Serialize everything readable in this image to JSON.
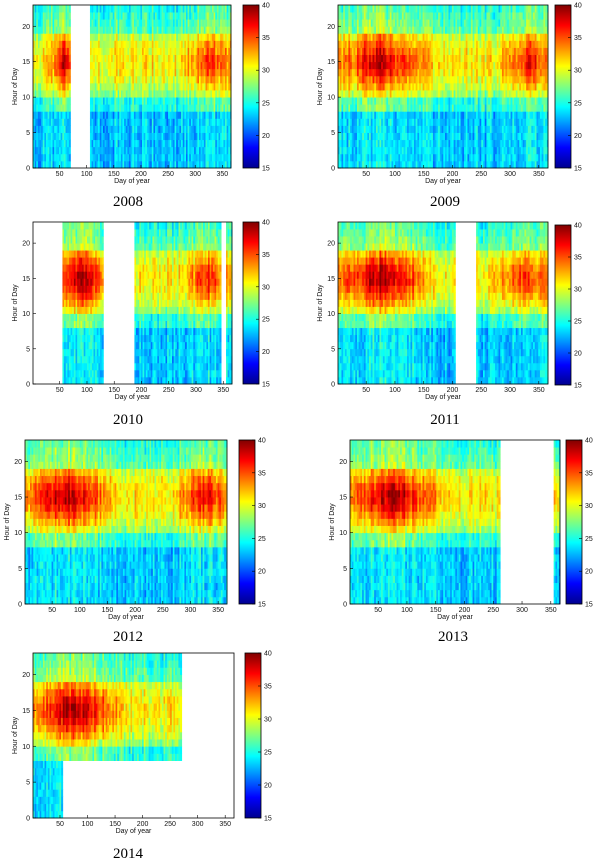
{
  "figure": {
    "colorbar_ticks": [
      15,
      20,
      25,
      30,
      35,
      40
    ],
    "colormap": "jet"
  },
  "chart_data": [
    {
      "type": "heatmap",
      "title": "2008",
      "xlabel": "Day of year",
      "ylabel": "Hour of Day",
      "xlim": [
        1,
        366
      ],
      "ylim": [
        0,
        23
      ],
      "clim": [
        15,
        40
      ],
      "x_ticks": [
        50,
        100,
        150,
        200,
        250,
        300,
        350
      ],
      "y_ticks": [
        0,
        5,
        10,
        15,
        20
      ],
      "data_gaps": [
        [
          70,
          105
        ]
      ],
      "partial_gaps": [],
      "hot_periods": [
        {
          "day_from": 50,
          "day_to": 70,
          "peak": 38
        },
        {
          "day_from": 290,
          "day_to": 366,
          "peak": 35
        }
      ]
    },
    {
      "type": "heatmap",
      "title": "2009",
      "xlabel": "Day of year",
      "ylabel": "Hour of Day",
      "xlim": [
        1,
        366
      ],
      "ylim": [
        0,
        23
      ],
      "clim": [
        15,
        40
      ],
      "x_ticks": [
        50,
        100,
        150,
        200,
        250,
        300,
        350
      ],
      "y_ticks": [
        0,
        5,
        10,
        15,
        20
      ],
      "data_gaps": [],
      "partial_gaps": [],
      "hot_periods": [
        {
          "day_from": 1,
          "day_to": 150,
          "peak": 38
        },
        {
          "day_from": 300,
          "day_to": 366,
          "peak": 36
        }
      ]
    },
    {
      "type": "heatmap",
      "title": "2010",
      "xlabel": "Day of year",
      "ylabel": "Hour of Day",
      "xlim": [
        1,
        366
      ],
      "ylim": [
        0,
        23
      ],
      "clim": [
        15,
        40
      ],
      "x_ticks": [
        50,
        100,
        150,
        200,
        250,
        300,
        350
      ],
      "y_ticks": [
        0,
        5,
        10,
        15,
        20
      ],
      "data_gaps": [
        [
          1,
          55
        ],
        [
          130,
          188
        ],
        [
          345,
          355
        ]
      ],
      "partial_gaps": [],
      "hot_periods": [
        {
          "day_from": 55,
          "day_to": 125,
          "peak": 39
        },
        {
          "day_from": 300,
          "day_to": 345,
          "peak": 36
        }
      ]
    },
    {
      "type": "heatmap",
      "title": "2011",
      "xlabel": "Day of year",
      "ylabel": "Hour of Day",
      "xlim": [
        1,
        366
      ],
      "ylim": [
        0,
        23
      ],
      "clim": [
        15,
        40
      ],
      "x_ticks": [
        50,
        100,
        150,
        200,
        250,
        300,
        350
      ],
      "y_ticks": [
        0,
        5,
        10,
        15,
        20
      ],
      "data_gaps": [
        [
          205,
          240
        ]
      ],
      "partial_gaps": [],
      "hot_periods": [
        {
          "day_from": 1,
          "day_to": 150,
          "peak": 39
        },
        {
          "day_from": 285,
          "day_to": 366,
          "peak": 36
        }
      ]
    },
    {
      "type": "heatmap",
      "title": "2012",
      "xlabel": "Day of year",
      "ylabel": "Hour of Day",
      "xlim": [
        1,
        366
      ],
      "ylim": [
        0,
        23
      ],
      "clim": [
        15,
        40
      ],
      "x_ticks": [
        50,
        100,
        150,
        200,
        250,
        300,
        350
      ],
      "y_ticks": [
        0,
        5,
        10,
        15,
        20
      ],
      "data_gaps": [],
      "partial_gaps": [],
      "hot_periods": [
        {
          "day_from": 1,
          "day_to": 150,
          "peak": 39
        },
        {
          "day_from": 290,
          "day_to": 366,
          "peak": 37
        }
      ]
    },
    {
      "type": "heatmap",
      "title": "2013",
      "xlabel": "Day of year",
      "ylabel": "Hour of Day",
      "xlim": [
        1,
        366
      ],
      "ylim": [
        0,
        23
      ],
      "clim": [
        15,
        40
      ],
      "x_ticks": [
        50,
        100,
        150,
        200,
        250,
        300,
        350
      ],
      "y_ticks": [
        0,
        5,
        10,
        15,
        20
      ],
      "data_gaps": [
        [
          262,
          355
        ]
      ],
      "partial_gaps": [],
      "hot_periods": [
        {
          "day_from": 1,
          "day_to": 150,
          "peak": 39
        }
      ]
    },
    {
      "type": "heatmap",
      "title": "2014",
      "xlabel": "Day of year",
      "ylabel": "Hour of Day",
      "xlim": [
        1,
        366
      ],
      "ylim": [
        0,
        23
      ],
      "clim": [
        15,
        40
      ],
      "x_ticks": [
        50,
        100,
        150,
        200,
        250,
        300,
        350
      ],
      "y_ticks": [
        0,
        5,
        10,
        15,
        20
      ],
      "data_gaps": [
        [
          272,
          366
        ]
      ],
      "partial_gaps": [
        {
          "day_from": 55,
          "day_to": 272,
          "hour_from": 0,
          "hour_to": 7
        }
      ],
      "hot_periods": [
        {
          "day_from": 1,
          "day_to": 150,
          "peak": 39
        }
      ]
    }
  ]
}
